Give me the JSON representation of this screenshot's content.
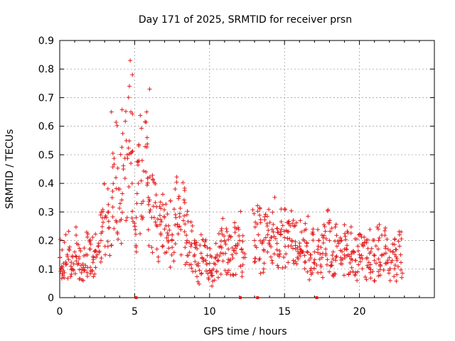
{
  "chart_data": {
    "type": "scatter",
    "title": "Day 171 of 2025, SRMTID for receiver prsn",
    "xlabel": "GPS time / hours",
    "ylabel": "SRMTID / TECUs",
    "xlim": [
      0,
      25
    ],
    "ylim": [
      0,
      0.9
    ],
    "xticks": [
      "0",
      "5",
      "10",
      "15",
      "20"
    ],
    "yticks": [
      "0",
      "0.1",
      "0.2",
      "0.3",
      "0.4",
      "0.5",
      "0.6",
      "0.7",
      "0.8",
      "0.9"
    ],
    "grid": true,
    "marker": "+",
    "color": "#e41a1c",
    "series": [
      {
        "name": "SRMTID",
        "x": [
          0.0,
          0.25,
          0.5,
          0.75,
          1.0,
          1.25,
          1.5,
          1.75,
          2.0,
          2.25,
          2.5,
          2.75,
          3.0,
          3.25,
          3.5,
          3.75,
          4.0,
          4.25,
          4.5,
          4.75,
          5.0,
          5.25,
          5.5,
          5.75,
          6.0,
          6.25,
          6.5,
          6.75,
          7.0,
          7.25,
          7.5,
          7.75,
          8.0,
          8.25,
          8.5,
          8.75,
          9.0,
          9.25,
          9.5,
          9.75,
          10.0,
          10.25,
          10.5,
          10.75,
          11.0,
          11.25,
          11.5,
          11.75,
          12.0,
          12.25,
          13.0,
          13.25,
          13.5,
          13.75,
          14.0,
          14.25,
          14.5,
          14.75,
          15.0,
          15.25,
          15.5,
          15.75,
          16.0,
          16.25,
          16.5,
          16.75,
          17.0,
          17.25,
          17.5,
          17.75,
          18.0,
          18.25,
          18.5,
          18.75,
          19.0,
          19.25,
          19.5,
          19.75,
          20.0,
          20.25,
          20.5,
          20.75,
          21.0,
          21.25,
          21.5,
          21.75,
          22.0,
          22.25,
          22.5,
          22.75
        ],
        "y": [
          0.14,
          0.12,
          0.15,
          0.11,
          0.16,
          0.12,
          0.1,
          0.15,
          0.17,
          0.14,
          0.15,
          0.2,
          0.28,
          0.3,
          0.35,
          0.42,
          0.38,
          0.45,
          0.5,
          0.47,
          0.25,
          0.4,
          0.48,
          0.44,
          0.3,
          0.32,
          0.25,
          0.22,
          0.24,
          0.2,
          0.22,
          0.28,
          0.25,
          0.27,
          0.2,
          0.18,
          0.15,
          0.12,
          0.14,
          0.13,
          0.12,
          0.1,
          0.15,
          0.18,
          0.2,
          0.17,
          0.15,
          0.18,
          0.2,
          0.14,
          0.2,
          0.22,
          0.19,
          0.21,
          0.2,
          0.23,
          0.19,
          0.22,
          0.21,
          0.18,
          0.2,
          0.17,
          0.18,
          0.16,
          0.19,
          0.15,
          0.16,
          0.18,
          0.14,
          0.17,
          0.2,
          0.16,
          0.18,
          0.14,
          0.17,
          0.15,
          0.16,
          0.13,
          0.15,
          0.18,
          0.14,
          0.16,
          0.13,
          0.17,
          0.15,
          0.18,
          0.14,
          0.16,
          0.13,
          0.15
        ]
      }
    ],
    "peaks": [
      {
        "x": 4.7,
        "y": 0.83
      },
      {
        "x": 4.85,
        "y": 0.78
      },
      {
        "x": 4.65,
        "y": 0.74
      },
      {
        "x": 6.0,
        "y": 0.73
      },
      {
        "x": 5.8,
        "y": 0.65
      },
      {
        "x": 3.45,
        "y": 0.65
      },
      {
        "x": 4.75,
        "y": 0.65
      }
    ],
    "zero_markers_x": [
      5.1,
      12.05,
      13.2,
      17.15
    ]
  }
}
